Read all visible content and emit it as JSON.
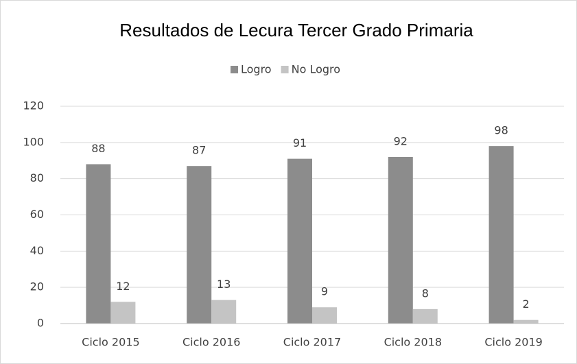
{
  "chart_data": {
    "type": "bar",
    "title": "Resultados de Lecura Tercer Grado Primaria",
    "categories": [
      "Ciclo 2015",
      "Ciclo 2016",
      "Ciclo 2017",
      "Ciclo 2018",
      "Ciclo 2019"
    ],
    "series": [
      {
        "name": "Logro",
        "color": "#8c8c8c",
        "values": [
          88,
          87,
          91,
          92,
          98
        ]
      },
      {
        "name": "No Logro",
        "color": "#c4c4c4",
        "values": [
          12,
          13,
          9,
          8,
          2
        ]
      }
    ],
    "ylim": [
      0,
      120
    ],
    "yticks": [
      0,
      20,
      40,
      60,
      80,
      100,
      120
    ],
    "grid": true,
    "legend": "top"
  }
}
